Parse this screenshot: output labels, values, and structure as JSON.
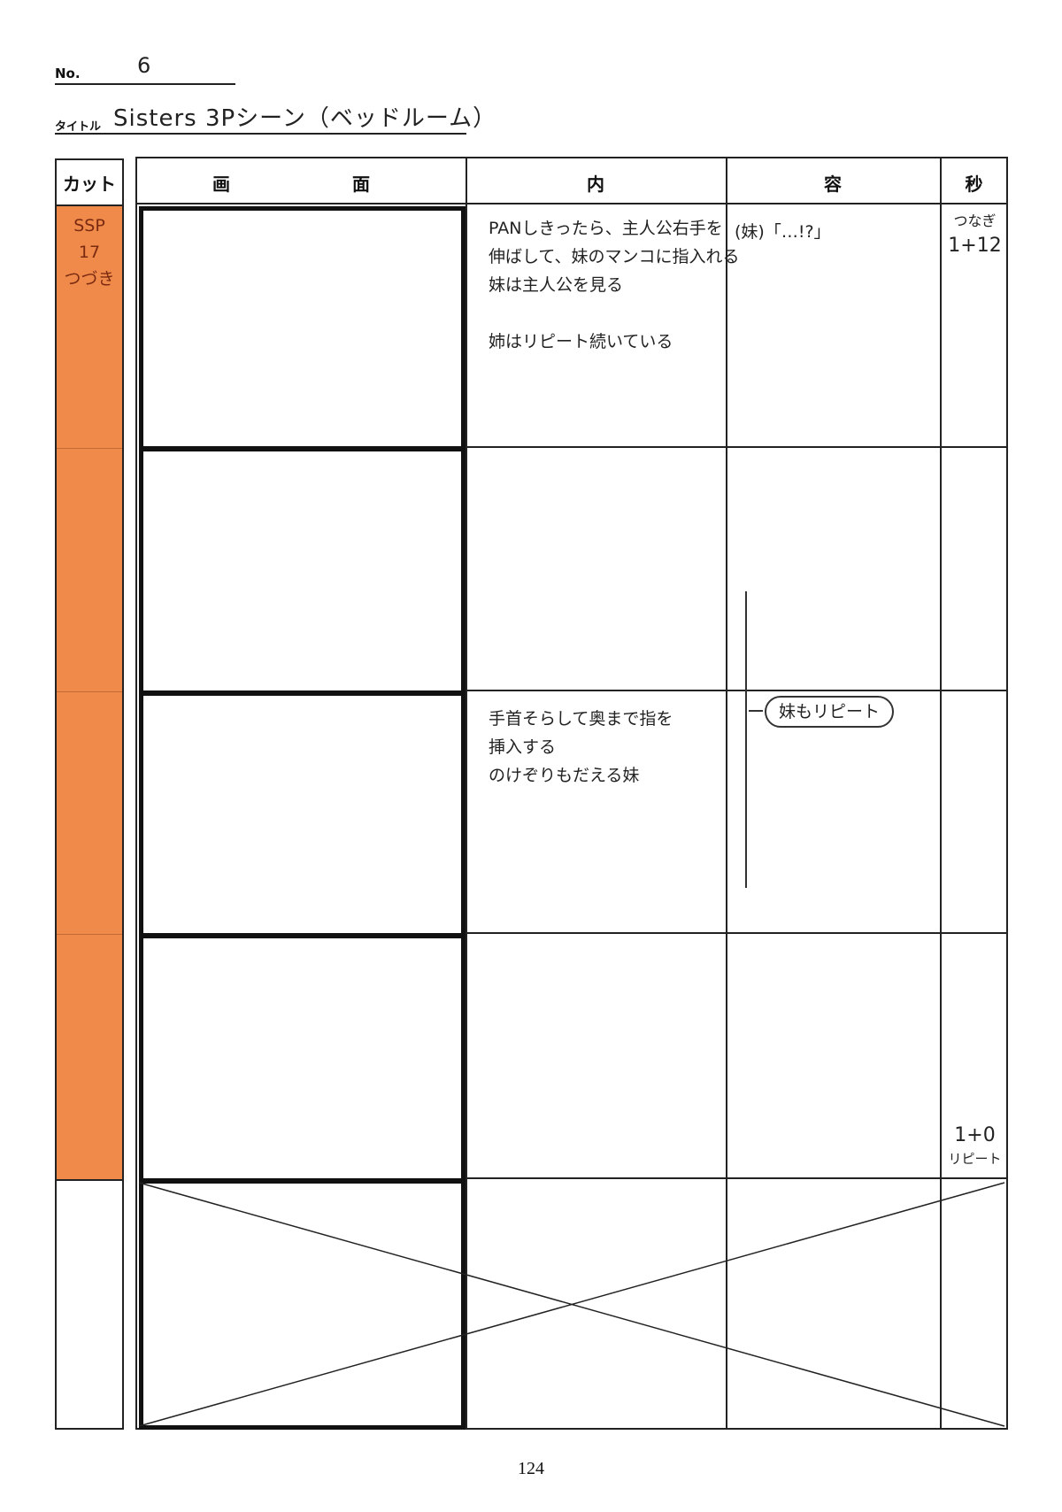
{
  "header": {
    "no_label": "No.",
    "no_value": "6",
    "title_label": "タイトル",
    "title_value": "Sisters 3Pシーン（ベッドルーム）"
  },
  "table": {
    "columns": [
      "カット",
      "画",
      "面",
      "内",
      "容",
      "秒"
    ],
    "cut": {
      "label": "SSP\n17\nつづき",
      "color": "#f08a4b"
    },
    "rows": [
      {
        "notes": [
          "PANしきったら、主人公右手を",
          "伸ばして、妹のマンコに指入れる",
          "妹は主人公を見る",
          "",
          "姉はリピート続いている"
        ],
        "dialogue": "(妹)「…!?」",
        "seconds": [
          "つなぎ",
          "1+12"
        ]
      },
      {
        "notes": [],
        "dialogue": "",
        "seconds": []
      },
      {
        "notes": [
          "手首そらして奥まで指を",
          "挿入する",
          "のけぞりもだえる妹"
        ],
        "dialogue": "妹もリピート",
        "seconds": []
      },
      {
        "notes": [],
        "dialogue": "",
        "seconds": [
          "1+0",
          "リピート"
        ]
      },
      {
        "notes": [],
        "dialogue": "",
        "seconds": [],
        "crossed_out": true
      }
    ]
  },
  "footer": {
    "page_number": "124"
  }
}
